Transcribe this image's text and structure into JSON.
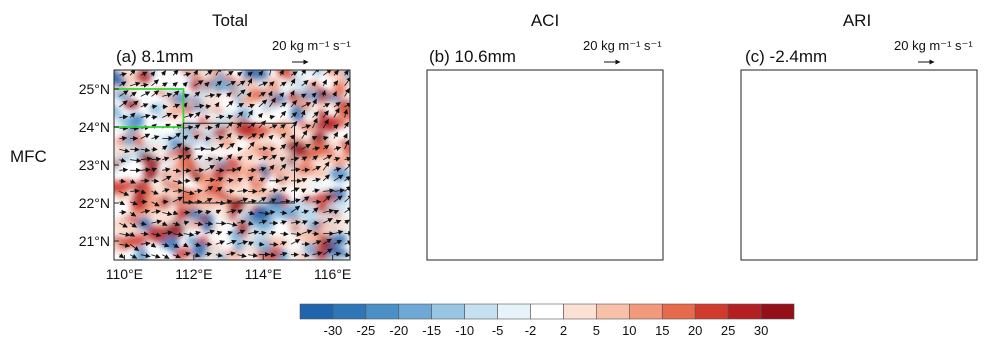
{
  "row_label": "MFC",
  "panels": [
    {
      "title": "Total",
      "label": "(a) 8.1mm",
      "ref_vector": "20 kg m⁻¹ s⁻¹",
      "tendency": "positive"
    },
    {
      "title": "ACI",
      "label": "(b) 10.6mm",
      "ref_vector": "20 kg m⁻¹ s⁻¹",
      "tendency": "positive"
    },
    {
      "title": "ARI",
      "label": "(c) -2.4mm",
      "ref_vector": "20 kg m⁻¹ s⁻¹",
      "tendency": "mixed"
    }
  ],
  "axes": {
    "lat_ticks": [
      "25°N",
      "24°N",
      "23°N",
      "22°N",
      "21°N"
    ],
    "lon_ticks": [
      "110°E",
      "112°E",
      "114°E",
      "116°E"
    ],
    "lat_range": [
      20.5,
      25.5
    ],
    "lon_range": [
      109.7,
      116.5
    ]
  },
  "regions": {
    "green_outline": {
      "color": "#37d23a",
      "lon": [
        109.7,
        111.7
      ],
      "lat": [
        24.0,
        25.0
      ]
    },
    "black_outline": {
      "color": "#222222",
      "points_lon": [
        111.7,
        114.9,
        114.9,
        111.7
      ],
      "points_lat": [
        24.1,
        24.1,
        22.0,
        22.0
      ]
    }
  },
  "colorbar": {
    "tick_labels": [
      "-30",
      "-25",
      "-20",
      "-15",
      "-10",
      "-5",
      "-2",
      "2",
      "5",
      "10",
      "15",
      "20",
      "25",
      "30"
    ],
    "colors": [
      "#1f64ad",
      "#2f76b8",
      "#4a8fc6",
      "#6ea9d5",
      "#98c5e2",
      "#c5e0ef",
      "#e7f3f8",
      "#ffffff",
      "#fbe0d4",
      "#f8c0a9",
      "#f29a7b",
      "#e66a4c",
      "#d13b2e",
      "#b41f22",
      "#931018"
    ]
  }
}
